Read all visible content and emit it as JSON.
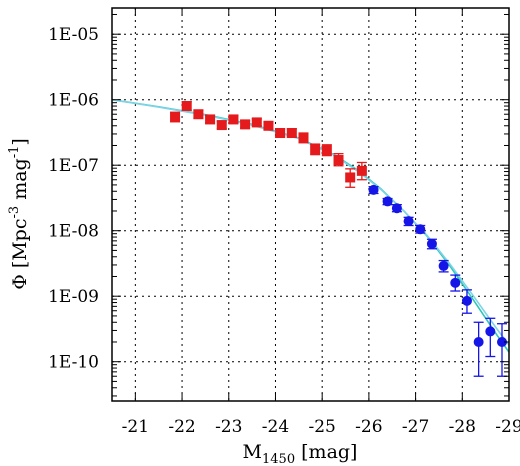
{
  "chart_data": {
    "type": "scatter",
    "x_label": {
      "main": "M",
      "sub": "1450",
      "rest": " [mag]"
    },
    "y_label": {
      "pre": "Φ [Mpc",
      "sup1": "-3",
      "mid": " mag",
      "sup2": "-1",
      "post": "]"
    },
    "xlim": [
      -20.5,
      -29
    ],
    "ylim_log10": [
      -10.6,
      -4.6
    ],
    "y_scale": "log",
    "grid": true,
    "x_ticks": [
      {
        "value": -21,
        "label": "-21"
      },
      {
        "value": -22,
        "label": "-22"
      },
      {
        "value": -23,
        "label": "-23"
      },
      {
        "value": -24,
        "label": "-24"
      },
      {
        "value": -25,
        "label": "-25"
      },
      {
        "value": -26,
        "label": "-26"
      },
      {
        "value": -27,
        "label": "-27"
      },
      {
        "value": -28,
        "label": "-28"
      },
      {
        "value": -29,
        "label": "-29"
      }
    ],
    "y_ticks": [
      {
        "value": 1e-10,
        "label": "1E-10"
      },
      {
        "value": 1e-09,
        "label": "1E-09"
      },
      {
        "value": 1e-08,
        "label": "1E-08"
      },
      {
        "value": 1e-07,
        "label": "1E-07"
      },
      {
        "value": 1e-06,
        "label": "1E-06"
      },
      {
        "value": 1e-05,
        "label": "1E-05"
      }
    ],
    "series": [
      {
        "marker": "square",
        "color": "#e41a1c",
        "points": [
          {
            "x": -21.85,
            "y": 5.5e-07,
            "ylo": 4.6e-07,
            "yhi": 6.4e-07
          },
          {
            "x": -22.1,
            "y": 8e-07,
            "ylo": 6.9e-07,
            "yhi": 9.3e-07
          },
          {
            "x": -22.35,
            "y": 6e-07,
            "ylo": 5.2e-07,
            "yhi": 6.9e-07
          },
          {
            "x": -22.6,
            "y": 5e-07,
            "ylo": 4.4e-07,
            "yhi": 5.7e-07
          },
          {
            "x": -22.85,
            "y": 4.1e-07,
            "ylo": 3.6e-07,
            "yhi": 4.7e-07
          },
          {
            "x": -23.1,
            "y": 5e-07,
            "ylo": 4.4e-07,
            "yhi": 5.7e-07
          },
          {
            "x": -23.35,
            "y": 4.2e-07,
            "ylo": 3.7e-07,
            "yhi": 4.8e-07
          },
          {
            "x": -23.6,
            "y": 4.5e-07,
            "ylo": 4e-07,
            "yhi": 5.1e-07
          },
          {
            "x": -23.85,
            "y": 4e-07,
            "ylo": 3.5e-07,
            "yhi": 4.6e-07
          },
          {
            "x": -24.1,
            "y": 3.1e-07,
            "ylo": 2.7e-07,
            "yhi": 3.6e-07
          },
          {
            "x": -24.35,
            "y": 3.1e-07,
            "ylo": 2.7e-07,
            "yhi": 3.6e-07
          },
          {
            "x": -24.6,
            "y": 2.6e-07,
            "ylo": 2.2e-07,
            "yhi": 3.1e-07
          },
          {
            "x": -24.85,
            "y": 1.75e-07,
            "ylo": 1.45e-07,
            "yhi": 2.1e-07
          },
          {
            "x": -25.1,
            "y": 1.7e-07,
            "ylo": 1.4e-07,
            "yhi": 2.05e-07
          },
          {
            "x": -25.35,
            "y": 1.2e-07,
            "ylo": 9.8e-08,
            "yhi": 1.5e-07
          },
          {
            "x": -25.6,
            "y": 6.5e-08,
            "ylo": 4.6e-08,
            "yhi": 8.8e-08
          },
          {
            "x": -25.85,
            "y": 8.2e-08,
            "ylo": 6e-08,
            "yhi": 1.1e-07
          }
        ]
      },
      {
        "marker": "circle",
        "color": "#1515e8",
        "points": [
          {
            "x": -26.1,
            "y": 4.2e-08,
            "ylo": 3.7e-08,
            "yhi": 4.7e-08
          },
          {
            "x": -26.4,
            "y": 2.8e-08,
            "ylo": 2.5e-08,
            "yhi": 3.1e-08
          },
          {
            "x": -26.6,
            "y": 2.2e-08,
            "ylo": 1.95e-08,
            "yhi": 2.5e-08
          },
          {
            "x": -26.85,
            "y": 1.4e-08,
            "ylo": 1.2e-08,
            "yhi": 1.6e-08
          },
          {
            "x": -27.1,
            "y": 1.05e-08,
            "ylo": 9.2e-09,
            "yhi": 1.2e-08
          },
          {
            "x": -27.35,
            "y": 6.3e-09,
            "ylo": 5.3e-09,
            "yhi": 7.4e-09
          },
          {
            "x": -27.6,
            "y": 2.9e-09,
            "ylo": 2.35e-09,
            "yhi": 3.5e-09
          },
          {
            "x": -27.85,
            "y": 1.6e-09,
            "ylo": 1.2e-09,
            "yhi": 2.1e-09
          },
          {
            "x": -28.1,
            "y": 8.5e-10,
            "ylo": 5.5e-10,
            "yhi": 1.25e-09
          },
          {
            "x": -28.35,
            "y": 2e-10,
            "ylo": 6e-11,
            "yhi": 4e-10
          },
          {
            "x": -28.6,
            "y": 2.9e-10,
            "ylo": 1.2e-10,
            "yhi": 4.6e-10
          },
          {
            "x": -28.85,
            "y": 2e-10,
            "ylo": 6e-11,
            "yhi": 3.8e-10
          }
        ]
      }
    ],
    "fit_lines": [
      {
        "color": "#2ec7b8",
        "points": [
          {
            "x": -20.5,
            "y": 1e-06
          },
          {
            "x": -21.5,
            "y": 7.8e-07
          },
          {
            "x": -22.5,
            "y": 5.9e-07
          },
          {
            "x": -23.5,
            "y": 4.2e-07
          },
          {
            "x": -24.5,
            "y": 2.6e-07
          },
          {
            "x": -25.25,
            "y": 1.45e-07
          },
          {
            "x": -25.75,
            "y": 8.5e-08
          },
          {
            "x": -26.25,
            "y": 4.4e-08
          },
          {
            "x": -26.75,
            "y": 2e-08
          },
          {
            "x": -27.25,
            "y": 8.2e-09
          },
          {
            "x": -27.75,
            "y": 2.8e-09
          },
          {
            "x": -28.25,
            "y": 8.5e-10
          },
          {
            "x": -28.75,
            "y": 2.5e-10
          },
          {
            "x": -29.0,
            "y": 1.4e-10
          }
        ]
      },
      {
        "color": "#7fd3e8",
        "points": [
          {
            "x": -20.5,
            "y": 1e-06
          },
          {
            "x": -21.5,
            "y": 7.7e-07
          },
          {
            "x": -22.5,
            "y": 5.8e-07
          },
          {
            "x": -23.5,
            "y": 4.1e-07
          },
          {
            "x": -24.5,
            "y": 2.55e-07
          },
          {
            "x": -25.25,
            "y": 1.42e-07
          },
          {
            "x": -25.75,
            "y": 8.2e-08
          },
          {
            "x": -26.25,
            "y": 4.3e-08
          },
          {
            "x": -26.75,
            "y": 2e-08
          },
          {
            "x": -27.25,
            "y": 8.4e-09
          },
          {
            "x": -27.75,
            "y": 3e-09
          },
          {
            "x": -28.25,
            "y": 9.8e-10
          },
          {
            "x": -28.75,
            "y": 3.1e-10
          },
          {
            "x": -29.0,
            "y": 1.8e-10
          }
        ]
      }
    ]
  }
}
